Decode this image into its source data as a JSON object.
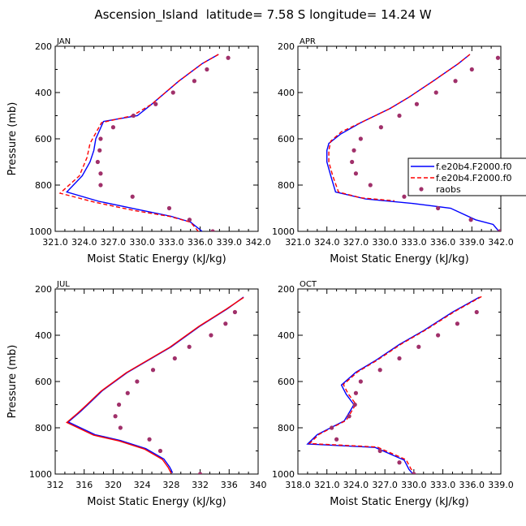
{
  "figure": {
    "title": "Ascension_Island  latitude= 7.58 S longitude= 14.24 W"
  },
  "colors": {
    "model1": "#0000ff",
    "model2": "#ff0000",
    "obs": "#a0306a",
    "axis": "#000000"
  },
  "legend": {
    "entries": [
      "f.e20b4.F2000.f0",
      "f.e20b4.F2000.f0",
      "raobs"
    ],
    "styles": [
      "solid",
      "dashed",
      "dot"
    ]
  },
  "chart_data": [
    {
      "type": "line",
      "panel": "JAN",
      "xlabel": "Moist Static Energy (kJ/kg)",
      "ylabel": "Pressure (mb)",
      "xlim": [
        321.0,
        342.0
      ],
      "ylim": [
        200,
        1000
      ],
      "y_inverted": true,
      "xticks": [
        321.0,
        324.0,
        327.0,
        330.0,
        333.0,
        336.0,
        339.0,
        342.0
      ],
      "xtick_labels": [
        "321.0",
        "324.0",
        "327.0",
        "330.0",
        "333.0",
        "336.0",
        "339.0",
        "342.0"
      ],
      "yticks": [
        200,
        400,
        600,
        800,
        1000
      ],
      "series": [
        {
          "key": "model1",
          "style": "solid",
          "points": [
            [
              337.9,
              235
            ],
            [
              336.2,
              275
            ],
            [
              333.8,
              350
            ],
            [
              331.0,
              450
            ],
            [
              329.5,
              500
            ],
            [
              326.0,
              525
            ],
            [
              325.2,
              600
            ],
            [
              325.0,
              650
            ],
            [
              324.6,
              700
            ],
            [
              323.8,
              760
            ],
            [
              322.2,
              830
            ],
            [
              325.5,
              870
            ],
            [
              329.5,
              905
            ],
            [
              333.0,
              935
            ],
            [
              335.0,
              960
            ],
            [
              336.2,
              1000
            ]
          ]
        },
        {
          "key": "model2",
          "style": "dashed",
          "points": [
            [
              337.9,
              235
            ],
            [
              336.2,
              275
            ],
            [
              333.8,
              350
            ],
            [
              331.0,
              450
            ],
            [
              329.0,
              500
            ],
            [
              325.8,
              530
            ],
            [
              324.6,
              620
            ],
            [
              324.3,
              680
            ],
            [
              323.5,
              760
            ],
            [
              321.5,
              835
            ],
            [
              325.2,
              875
            ],
            [
              329.2,
              910
            ],
            [
              332.8,
              935
            ],
            [
              335.0,
              960
            ],
            [
              335.9,
              1005
            ]
          ]
        },
        {
          "key": "obs",
          "style": "dot",
          "points": [
            [
              338.9,
              250
            ],
            [
              336.7,
              300
            ],
            [
              335.4,
              350
            ],
            [
              333.2,
              400
            ],
            [
              331.4,
              450
            ],
            [
              329.1,
              500
            ],
            [
              327.0,
              550
            ],
            [
              325.7,
              600
            ],
            [
              325.6,
              650
            ],
            [
              325.4,
              700
            ],
            [
              325.7,
              750
            ],
            [
              325.7,
              800
            ],
            [
              329.0,
              850
            ],
            [
              332.8,
              900
            ],
            [
              334.9,
              950
            ],
            [
              337.3,
              1000
            ]
          ]
        }
      ]
    },
    {
      "type": "line",
      "panel": "APR",
      "xlabel": "Moist Static Energy (kJ/kg)",
      "ylabel": "",
      "xlim": [
        321.0,
        342.0
      ],
      "ylim": [
        200,
        1000
      ],
      "y_inverted": true,
      "xticks": [
        321.0,
        324.0,
        327.0,
        330.0,
        333.0,
        336.0,
        339.0,
        342.0
      ],
      "xtick_labels": [
        "321.0",
        "324.0",
        "327.0",
        "330.0",
        "333.0",
        "336.0",
        "339.0",
        "342.0"
      ],
      "yticks": [
        200,
        400,
        600,
        800,
        1000
      ],
      "series": [
        {
          "key": "model1",
          "style": "solid",
          "points": [
            [
              338.8,
              235
            ],
            [
              337.6,
              275
            ],
            [
              335.0,
              350
            ],
            [
              332.5,
              420
            ],
            [
              330.5,
              470
            ],
            [
              327.5,
              530
            ],
            [
              325.4,
              580
            ],
            [
              324.2,
              620
            ],
            [
              324.0,
              650
            ],
            [
              324.0,
              700
            ],
            [
              324.4,
              760
            ],
            [
              324.9,
              830
            ],
            [
              328.0,
              860
            ],
            [
              333.0,
              880
            ],
            [
              336.8,
              900
            ],
            [
              339.4,
              950
            ],
            [
              341.2,
              970
            ],
            [
              341.8,
              1000
            ]
          ]
        },
        {
          "key": "model2",
          "style": "dashed",
          "points": [
            [
              338.8,
              235
            ],
            [
              337.6,
              275
            ],
            [
              335.0,
              350
            ],
            [
              332.5,
              420
            ],
            [
              330.5,
              470
            ],
            [
              327.5,
              530
            ],
            [
              325.5,
              570
            ],
            [
              324.4,
              610
            ],
            [
              324.2,
              650
            ],
            [
              324.2,
              700
            ],
            [
              324.6,
              760
            ],
            [
              325.2,
              830
            ],
            [
              327.5,
              855
            ],
            [
              331.0,
              868
            ]
          ]
        },
        {
          "key": "obs",
          "style": "dot",
          "points": [
            [
              341.7,
              250
            ],
            [
              339.0,
              300
            ],
            [
              337.3,
              350
            ],
            [
              335.3,
              400
            ],
            [
              333.3,
              450
            ],
            [
              331.5,
              500
            ],
            [
              329.6,
              550
            ],
            [
              327.5,
              600
            ],
            [
              326.8,
              650
            ],
            [
              326.6,
              700
            ],
            [
              327.0,
              750
            ],
            [
              328.5,
              800
            ],
            [
              332.0,
              850
            ],
            [
              335.5,
              900
            ],
            [
              338.9,
              950
            ],
            [
              341.9,
              1000
            ]
          ]
        }
      ]
    },
    {
      "type": "line",
      "panel": "JUL",
      "xlabel": "Moist Static Energy (kJ/kg)",
      "ylabel": "Pressure (mb)",
      "xlim": [
        312,
        340
      ],
      "ylim": [
        200,
        1000
      ],
      "y_inverted": true,
      "xticks": [
        312,
        316,
        320,
        324,
        328,
        332,
        336,
        340
      ],
      "xtick_labels": [
        "312",
        "316",
        "320",
        "324",
        "328",
        "332",
        "336",
        "340"
      ],
      "yticks": [
        200,
        400,
        600,
        800,
        1000
      ],
      "series": [
        {
          "key": "model1",
          "style": "solid",
          "points": [
            [
              338.0,
              235
            ],
            [
              335.8,
              285
            ],
            [
              332.0,
              360
            ],
            [
              328.0,
              450
            ],
            [
              322.0,
              560
            ],
            [
              318.5,
              640
            ],
            [
              316.5,
              700
            ],
            [
              315.3,
              735
            ],
            [
              313.8,
              775
            ],
            [
              317.5,
              830
            ],
            [
              321.0,
              855
            ],
            [
              324.5,
              890
            ],
            [
              327.0,
              935
            ],
            [
              327.8,
              970
            ],
            [
              328.2,
              995
            ]
          ]
        },
        {
          "key": "model2",
          "style": "solid",
          "points": [
            [
              338.0,
              237
            ],
            [
              335.6,
              287
            ],
            [
              331.8,
              362
            ],
            [
              327.8,
              452
            ],
            [
              321.8,
              562
            ],
            [
              318.3,
              642
            ],
            [
              316.3,
              702
            ],
            [
              315.1,
              737
            ],
            [
              313.6,
              777
            ],
            [
              317.3,
              832
            ],
            [
              320.8,
              857
            ],
            [
              324.3,
              892
            ],
            [
              326.8,
              937
            ],
            [
              327.6,
              972
            ],
            [
              328.0,
              997
            ]
          ]
        },
        {
          "key": "obs",
          "style": "dot",
          "points": [
            [
              336.8,
              300
            ],
            [
              335.5,
              350
            ],
            [
              333.5,
              400
            ],
            [
              330.5,
              450
            ],
            [
              328.5,
              500
            ],
            [
              325.5,
              550
            ],
            [
              323.3,
              600
            ],
            [
              322.0,
              650
            ],
            [
              320.8,
              700
            ],
            [
              320.3,
              750
            ],
            [
              321.0,
              800
            ],
            [
              325.0,
              850
            ],
            [
              326.5,
              900
            ],
            [
              332.0,
              1000
            ]
          ]
        }
      ]
    },
    {
      "type": "line",
      "panel": "OCT",
      "xlabel": "Moist Static Energy (kJ/kg)",
      "ylabel": "",
      "xlim": [
        318.0,
        339.0
      ],
      "ylim": [
        200,
        1000
      ],
      "y_inverted": true,
      "xticks": [
        318.0,
        321.0,
        324.0,
        327.0,
        330.0,
        333.0,
        336.0,
        339.0
      ],
      "xtick_labels": [
        "318.0",
        "321.0",
        "324.0",
        "327.0",
        "330.0",
        "333.0",
        "336.0",
        "339.0"
      ],
      "yticks": [
        200,
        400,
        600,
        800,
        1000
      ],
      "series": [
        {
          "key": "model1",
          "style": "solid",
          "points": [
            [
              336.8,
              235
            ],
            [
              334.0,
              300
            ],
            [
              331.0,
              380
            ],
            [
              328.5,
              440
            ],
            [
              326.0,
              510
            ],
            [
              324.0,
              560
            ],
            [
              322.5,
              615
            ],
            [
              323.0,
              655
            ],
            [
              323.8,
              700
            ],
            [
              322.8,
              770
            ],
            [
              320.0,
              830
            ],
            [
              319.0,
              870
            ],
            [
              326.0,
              885
            ],
            [
              329.0,
              940
            ],
            [
              329.5,
              980
            ],
            [
              329.9,
              1000
            ]
          ]
        },
        {
          "key": "model2",
          "style": "dashed",
          "points": [
            [
              337.0,
              233
            ],
            [
              334.2,
              298
            ],
            [
              331.2,
              378
            ],
            [
              328.7,
              438
            ],
            [
              326.2,
              508
            ],
            [
              324.2,
              558
            ],
            [
              322.7,
              613
            ],
            [
              323.2,
              653
            ],
            [
              324.0,
              698
            ],
            [
              323.0,
              768
            ],
            [
              320.2,
              828
            ],
            [
              319.2,
              868
            ],
            [
              326.2,
              883
            ],
            [
              329.2,
              938
            ],
            [
              329.7,
              978
            ],
            [
              330.1,
              998
            ]
          ]
        },
        {
          "key": "obs",
          "style": "dot",
          "points": [
            [
              336.5,
              300
            ],
            [
              334.5,
              350
            ],
            [
              332.5,
              400
            ],
            [
              330.5,
              450
            ],
            [
              328.5,
              500
            ],
            [
              326.5,
              550
            ],
            [
              324.5,
              600
            ],
            [
              324.0,
              650
            ],
            [
              323.9,
              700
            ],
            [
              323.3,
              750
            ],
            [
              321.5,
              800
            ],
            [
              322.0,
              850
            ],
            [
              326.5,
              900
            ],
            [
              328.5,
              950
            ],
            [
              330.0,
              1000
            ]
          ]
        }
      ]
    }
  ]
}
